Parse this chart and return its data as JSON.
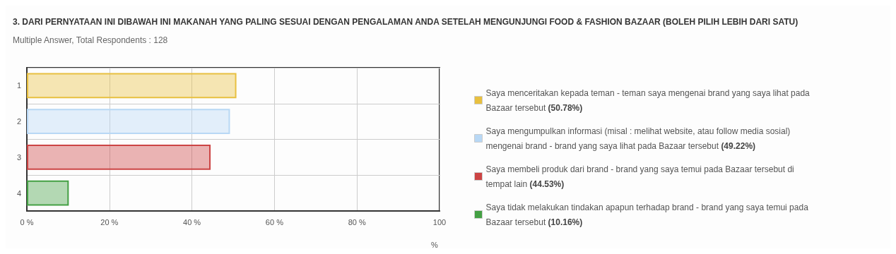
{
  "chart_data": {
    "type": "bar",
    "orientation": "horizontal",
    "stacked": true,
    "title": "3. DARI PERNYATAAN INI DIBAWAH INI MAKANAH YANG PALING SESUAI DENGAN PENGALAMAN ANDA SETELAH MENGUNJUNGI FOOD & FASHION BAZAAR (BOLEH PILIH LEBIH DARI SATU)",
    "subtitle": "Multiple Answer, Total Respondents : 128",
    "xlabel": "%",
    "categories": [
      "1",
      "2",
      "3",
      "4"
    ],
    "series": [
      {
        "name": "Saya menceritakan kepada teman - teman saya mengenai brand yang saya lihat pada Bazaar tersebut (50.78%)",
        "color": "#e8c040",
        "values": [
          50.78,
          null,
          null,
          null
        ]
      },
      {
        "name": "Saya mengumpulkan informasi (misal : melihat website, atau follow media sosial) mengenai brand - brand yang saya lihat pada Bazaar tersebut (49.22%)",
        "color": "#b8d8f5",
        "values": [
          null,
          49.22,
          null,
          null
        ]
      },
      {
        "name": "Saya membeli produk dari brand - brand yang saya temui pada Bazaar tersebut di tempat lain (44.53%)",
        "color": "#cc4444",
        "values": [
          null,
          null,
          44.53,
          null
        ]
      },
      {
        "name": "Saya tidak melakukan tindakan apapun terhadap brand - brand yang saya temui pada Bazaar tersebut (10.16%)",
        "color": "#44a044",
        "values": [
          null,
          null,
          null,
          10.16
        ]
      }
    ],
    "xlim": [
      0,
      100
    ],
    "xticks": [
      {
        "value": 0,
        "label": "0 %"
      },
      {
        "value": 20,
        "label": "20 %"
      },
      {
        "value": 40,
        "label": "40 %"
      },
      {
        "value": 60,
        "label": "60 %"
      },
      {
        "value": 80,
        "label": "80 %"
      },
      {
        "value": 100,
        "label": "100"
      }
    ],
    "grid": true,
    "legend": "right"
  }
}
